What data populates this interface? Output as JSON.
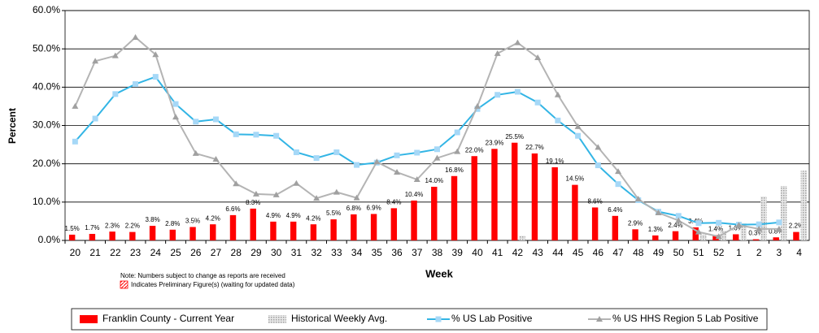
{
  "chart_data": {
    "type": "combo",
    "y_label": "Percent",
    "x_label": "Week",
    "notes": [
      "Note: Numbers subject to change as reports are received",
      "Indicates Preliminary Figure(s) (waiting for updated data)"
    ],
    "categories": [
      "20",
      "21",
      "22",
      "23",
      "24",
      "25",
      "26",
      "27",
      "28",
      "29",
      "30",
      "31",
      "32",
      "33",
      "34",
      "35",
      "36",
      "37",
      "38",
      "39",
      "40",
      "41",
      "42",
      "43",
      "44",
      "45",
      "46",
      "47",
      "48",
      "49",
      "50",
      "51",
      "52",
      "1",
      "2",
      "3",
      "4"
    ],
    "ylim": [
      0,
      60
    ],
    "yticks": [
      {
        "value": 0,
        "label": "0.0%"
      },
      {
        "value": 10,
        "label": "10.0%"
      },
      {
        "value": 20,
        "label": "20.0%"
      },
      {
        "value": 30,
        "label": "30.0%"
      },
      {
        "value": 40,
        "label": "40.0%"
      },
      {
        "value": 50,
        "label": "50.0%"
      },
      {
        "value": 60,
        "label": "60.0%"
      }
    ],
    "grid": true,
    "legend": "bottom",
    "series": [
      {
        "name": "Franklin County - Current Year",
        "type": "bar",
        "color": "#ff0000",
        "values": [
          1.5,
          1.7,
          2.3,
          2.2,
          3.8,
          2.8,
          3.5,
          4.2,
          6.6,
          8.3,
          4.9,
          4.9,
          4.2,
          5.5,
          6.8,
          6.9,
          8.4,
          10.4,
          14.0,
          16.8,
          22.0,
          23.9,
          25.5,
          22.7,
          19.1,
          14.5,
          8.6,
          6.4,
          2.9,
          1.3,
          2.4,
          3.4,
          1.4,
          1.6,
          0.3,
          0.8,
          2.2
        ],
        "value_labels": [
          "1.5%",
          "1.7%",
          "2.3%",
          "2.2%",
          "3.8%",
          "2.8%",
          "3.5%",
          "4.2%",
          "6.6%",
          "8.3%",
          "4.9%",
          "4.9%",
          "4.2%",
          "5.5%",
          "6.8%",
          "6.9%",
          "8.4%",
          "10.4%",
          "14.0%",
          "16.8%",
          "22.0%",
          "23.9%",
          "25.5%",
          "22.7%",
          "19.1%",
          "14.5%",
          "8.6%",
          "6.4%",
          "2.9%",
          "1.3%",
          "2.4%",
          "3.4%",
          "1.4%",
          "1.6%",
          "0.3%",
          "0.8%",
          "2.2%"
        ]
      },
      {
        "name": "Historical Weekly Avg.",
        "type": "bar",
        "color": "#c0c0c0",
        "values": [
          0,
          0,
          0,
          0,
          0,
          0,
          0,
          0,
          0,
          0,
          0,
          0,
          0,
          0,
          0,
          0,
          0,
          0,
          0,
          0,
          0,
          0,
          1.2,
          0,
          0,
          0,
          0,
          0,
          0,
          0,
          0,
          1.5,
          2.5,
          4.5,
          11.5,
          14.2,
          18.2
        ]
      },
      {
        "name": "% US Lab Positive",
        "type": "line",
        "color": "#33b5e5",
        "marker": "square",
        "marker_color": "#a6d8f7",
        "values": [
          25.8,
          31.8,
          38.2,
          40.8,
          42.7,
          35.6,
          31.0,
          31.6,
          27.7,
          27.6,
          27.3,
          23.0,
          21.5,
          23.0,
          19.7,
          20.3,
          22.2,
          22.9,
          23.8,
          28.2,
          34.3,
          38.0,
          38.8,
          36.0,
          31.3,
          27.3,
          19.6,
          14.7,
          10.5,
          7.5,
          6.4,
          4.5,
          4.6,
          4.1,
          4.2,
          4.7,
          null
        ]
      },
      {
        "name": "% US HHS Region 5 Lab Positive",
        "type": "line",
        "color": "#b4b4b4",
        "marker": "triangle",
        "marker_color": "#a0a0a0",
        "values": [
          35.0,
          46.8,
          48.2,
          53.0,
          48.5,
          32.2,
          22.7,
          21.2,
          14.8,
          12.1,
          11.9,
          14.9,
          11.0,
          12.6,
          11.1,
          20.5,
          17.8,
          15.9,
          21.5,
          23.2,
          35.0,
          48.8,
          51.6,
          47.7,
          38.0,
          29.7,
          24.3,
          18.0,
          10.8,
          7.2,
          5.2,
          2.2,
          1.0,
          4.0,
          3.0,
          3.0,
          null
        ]
      }
    ]
  }
}
